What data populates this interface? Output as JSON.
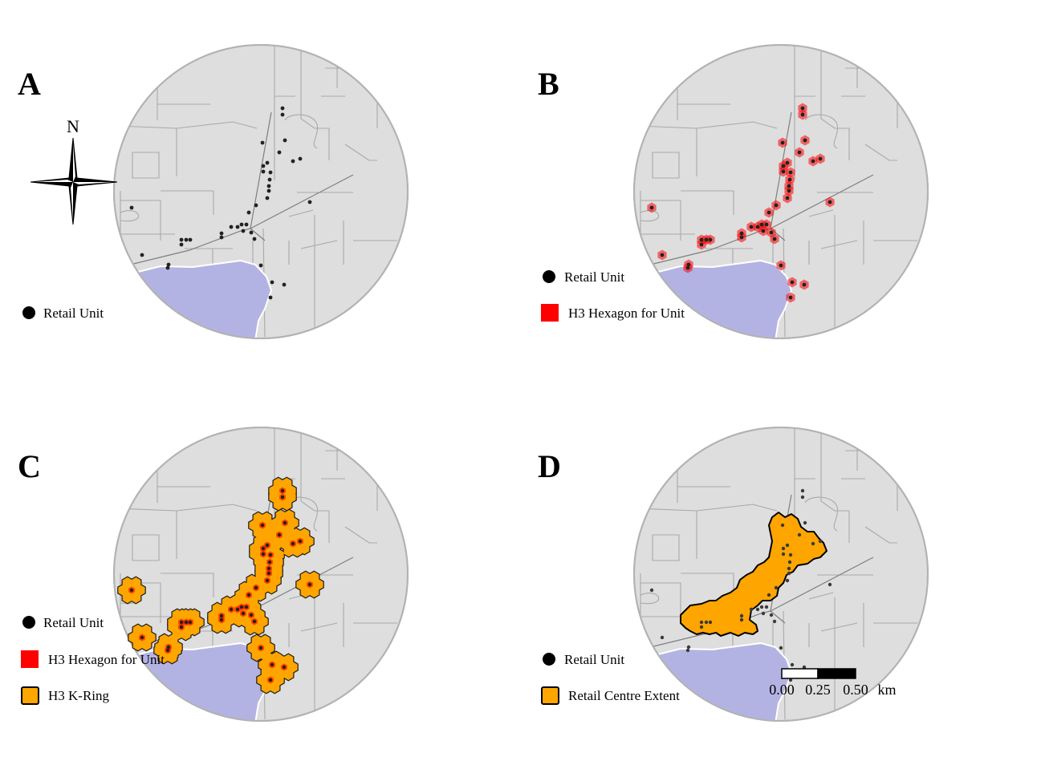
{
  "panels": [
    {
      "id": "A",
      "label": "A",
      "legend": [
        "Retail Unit"
      ]
    },
    {
      "id": "B",
      "label": "B",
      "legend": [
        "Retail Unit",
        "H3 Hexagon for Unit"
      ]
    },
    {
      "id": "C",
      "label": "C",
      "legend": [
        "Retail Unit",
        "H3 Hexagon for Unit",
        "H3 K-Ring"
      ]
    },
    {
      "id": "D",
      "label": "D",
      "legend": [
        "Retail Unit",
        "Retail Centre Extent"
      ]
    }
  ],
  "north_arrow": {
    "label": "N"
  },
  "scale_bar": {
    "ticks": [
      "0.00",
      "0.25",
      "0.50"
    ],
    "unit": "km"
  },
  "colors": {
    "land": "#dedede",
    "border": "#b2b2b2",
    "water": "#b3b3e3",
    "unit_point": "#222222",
    "h3_hexagon": "#ff0000",
    "k_ring": "#ffa500"
  }
}
